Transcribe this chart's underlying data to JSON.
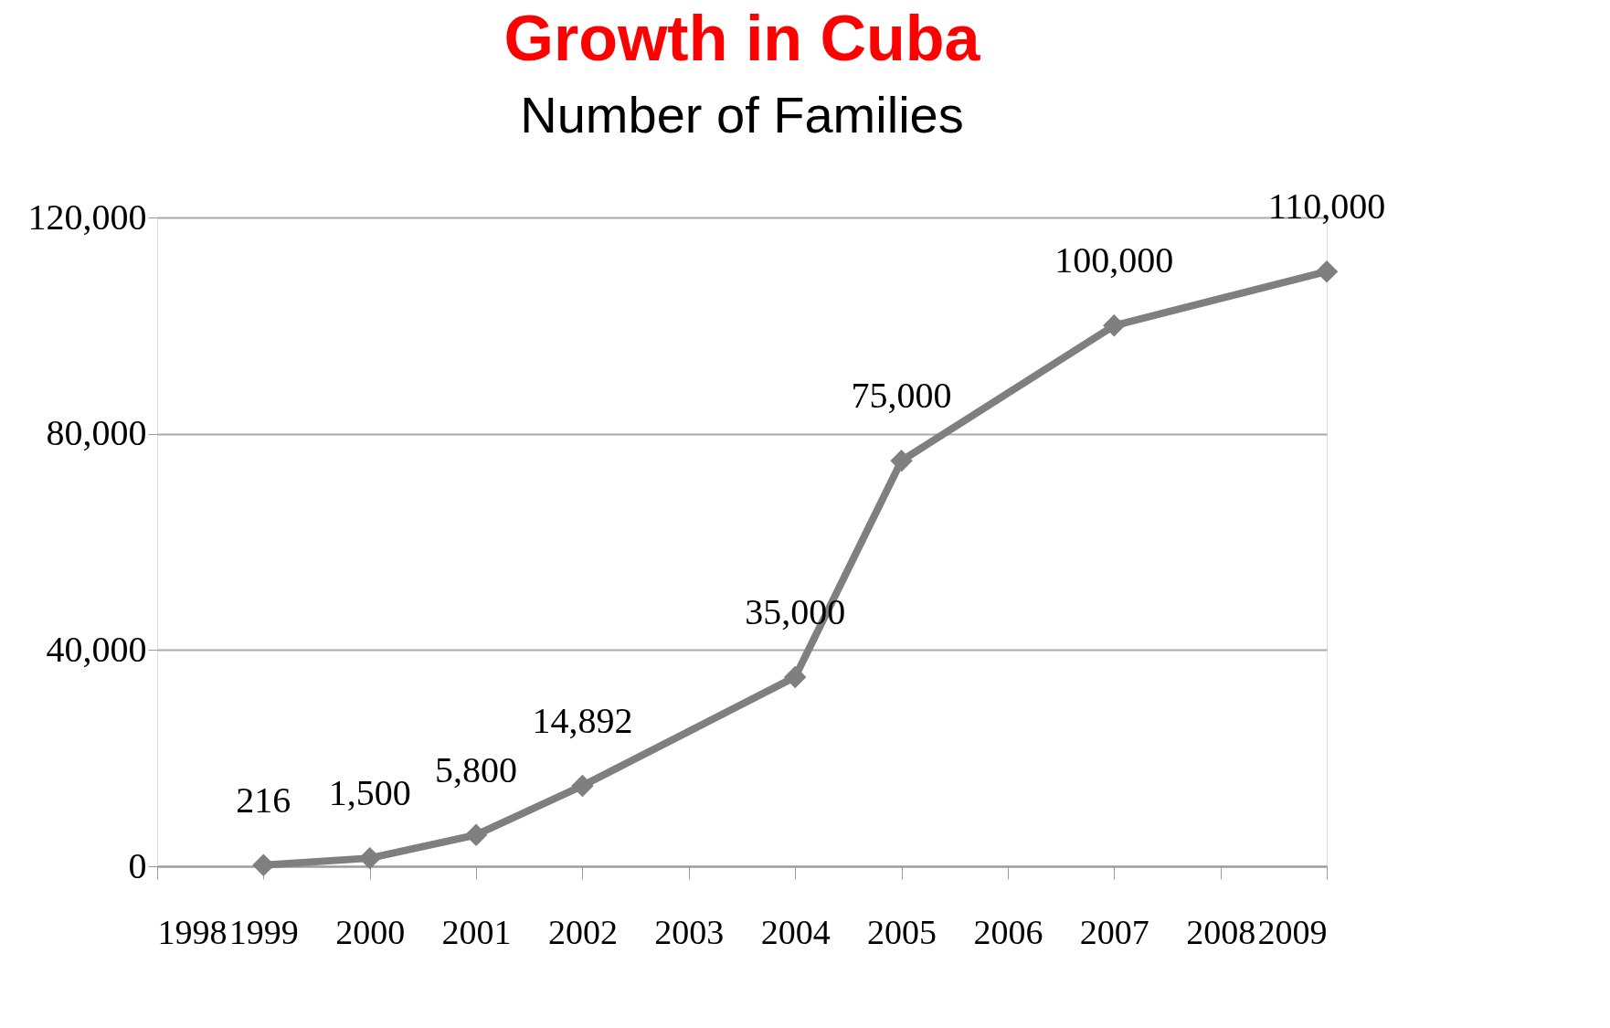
{
  "chart_data": {
    "type": "line",
    "title": "Growth in Cuba",
    "subtitle": "Number of Families",
    "x": [
      1999,
      2000,
      2001,
      2002,
      2004,
      2005,
      2007,
      2009
    ],
    "series": [
      {
        "color": "#7f7f7f",
        "values": [
          216,
          1500,
          5800,
          14892,
          35000,
          75000,
          100000,
          110000
        ],
        "value_labels": [
          "216",
          "1,500",
          "5,800",
          "14,892",
          "35,000",
          "75,000",
          "100,000",
          "110,000"
        ]
      }
    ],
    "xlim": [
      1998,
      2009
    ],
    "xticks": [
      1998,
      1999,
      2000,
      2001,
      2002,
      2003,
      2004,
      2005,
      2006,
      2007,
      2008,
      2009
    ],
    "ylim": [
      0,
      120000
    ],
    "yticks": [
      0,
      {
        "value": 40000,
        "label": "40,000"
      },
      {
        "value": 80000,
        "label": "80,000"
      },
      {
        "value": 120000,
        "label": "120,000"
      }
    ],
    "grid": "y",
    "marker": "diamond",
    "line_style": "solid"
  }
}
